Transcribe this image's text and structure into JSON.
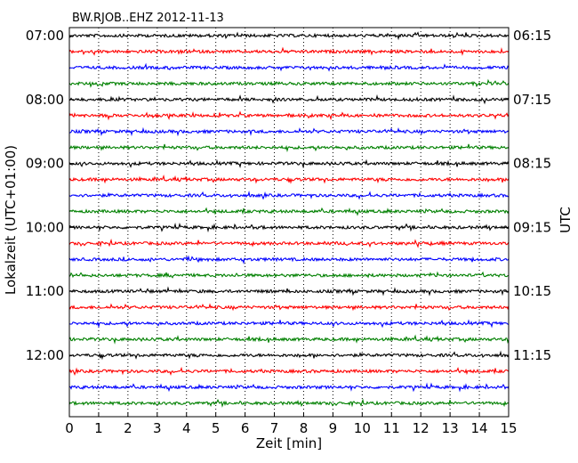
{
  "chart_data": {
    "type": "line",
    "title": "BW.RJOB..EHZ 2012-11-13",
    "xlabel": "Zeit  [min]",
    "ylabel_left": "Lokalzeit (UTC+01:00)",
    "ylabel_right": "UTC",
    "xlim": [
      0,
      15
    ],
    "x_ticks": [
      "0",
      "1",
      "2",
      "3",
      "4",
      "5",
      "6",
      "7",
      "8",
      "9",
      "10",
      "11",
      "12",
      "13",
      "14",
      "15"
    ],
    "vertical_grid": "dotted",
    "rows_count": 24,
    "row_interval_min": 15,
    "trace_colors": [
      "#000000",
      "#ff0000",
      "#0000ff",
      "#008000"
    ],
    "left_ticks": [
      {
        "row": 0,
        "label": "07:00"
      },
      {
        "row": 4,
        "label": "08:00"
      },
      {
        "row": 8,
        "label": "09:00"
      },
      {
        "row": 12,
        "label": "10:00"
      },
      {
        "row": 16,
        "label": "11:00"
      },
      {
        "row": 20,
        "label": "12:00"
      }
    ],
    "right_ticks": [
      {
        "row": 0,
        "label": "06:15"
      },
      {
        "row": 4,
        "label": "07:15"
      },
      {
        "row": 8,
        "label": "08:15"
      },
      {
        "row": 12,
        "label": "09:15"
      },
      {
        "row": 16,
        "label": "10:15"
      },
      {
        "row": 20,
        "label": "11:15"
      }
    ]
  }
}
